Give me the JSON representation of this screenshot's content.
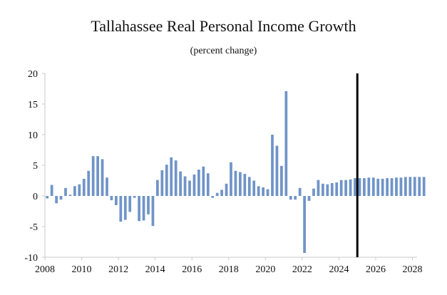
{
  "chart_data": {
    "type": "bar",
    "title": "Tallahassee Real Personal Income Growth",
    "subtitle": "(percent change)",
    "xlabel": "",
    "ylabel": "",
    "ylim": [
      -10,
      20
    ],
    "yticks": [
      -10,
      -5,
      0,
      5,
      10,
      15,
      20
    ],
    "xticks": [
      "2008",
      "2010",
      "2012",
      "2014",
      "2016",
      "2018",
      "2020",
      "2022",
      "2024",
      "2026",
      "2028"
    ],
    "x_start_year": 2008,
    "x_end_year": 2028.25,
    "vertical_line_year": 2025,
    "bar_color": "#7094c8",
    "vline_color": "#000000",
    "series": [
      {
        "name": "Real Personal Income Growth",
        "start": "2008Q1",
        "values": [
          -0.4,
          1.8,
          -1.2,
          -0.6,
          1.3,
          0.2,
          1.6,
          1.9,
          2.8,
          4.1,
          6.5,
          6.5,
          6.0,
          3.0,
          -0.7,
          -1.5,
          -4.2,
          -3.9,
          -2.6,
          -0.3,
          -4.1,
          -4.0,
          -3.0,
          -4.9,
          2.6,
          4.2,
          5.1,
          6.3,
          5.8,
          4.0,
          3.2,
          2.5,
          3.5,
          4.3,
          4.8,
          3.7,
          -0.3,
          0.5,
          1.0,
          2.0,
          5.5,
          4.1,
          3.9,
          3.6,
          3.1,
          2.5,
          1.6,
          1.4,
          1.1,
          10.0,
          8.2,
          4.9,
          17.1,
          -0.6,
          -0.6,
          1.3,
          -9.3,
          -0.8,
          1.2,
          2.6,
          2.0,
          1.9,
          2.1,
          2.2,
          2.6,
          2.6,
          2.7,
          2.9,
          2.9,
          2.9,
          3.0,
          3.0,
          2.8,
          2.8,
          2.9,
          2.9,
          3.0,
          3.0,
          3.1,
          3.1,
          3.1,
          3.1,
          3.1
        ]
      }
    ]
  }
}
